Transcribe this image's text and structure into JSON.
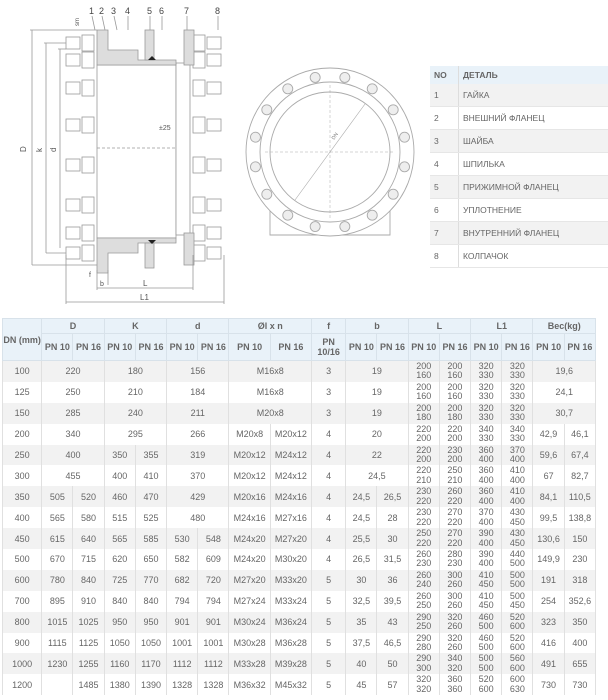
{
  "drawing": {
    "callouts": [
      "1",
      "2",
      "3",
      "4",
      "5",
      "6",
      "7",
      "8"
    ],
    "dims": {
      "D": "D",
      "k": "k",
      "d": "d",
      "L": "L",
      "L1": "L1",
      "b": "b",
      "f": "f",
      "pm": "±25",
      "sm": "sm"
    },
    "front_label": "DN"
  },
  "parts": {
    "headers": [
      "NO",
      "ДЕТАЛЬ"
    ],
    "rows": [
      [
        "1",
        "ГАЙКА"
      ],
      [
        "2",
        "ВНЕШНИЙ ФЛАНЕЦ"
      ],
      [
        "3",
        "ШАЙБА"
      ],
      [
        "4",
        "ШПИЛЬКА"
      ],
      [
        "5",
        "ПРИЖИМНОЙ ФЛАНЕЦ"
      ],
      [
        "6",
        "УПЛОТНЕНИЕ"
      ],
      [
        "7",
        "ВНУТРЕННИЙ ФЛАНЕЦ"
      ],
      [
        "8",
        "КОЛПАЧОК"
      ]
    ]
  },
  "table": {
    "head": {
      "dn": "DN (mm)",
      "D": "D",
      "K": "K",
      "d": "d",
      "bolt": "Øl x n",
      "f": "f",
      "b": "b",
      "L": "L",
      "L1": "L1",
      "w": "Bec(kg)",
      "pn10": "PN 10",
      "pn16": "PN 16",
      "pn1016": "PN 10/16"
    },
    "rows": [
      {
        "dn": "100",
        "D": [
          "220"
        ],
        "K": [
          "180"
        ],
        "d": [
          "156"
        ],
        "bolt": [
          "M16x8"
        ],
        "f": "3",
        "b": [
          "19"
        ],
        "L": [
          [
            "200",
            "160"
          ],
          [
            "200",
            "160"
          ]
        ],
        "L1": [
          [
            "320",
            "330"
          ],
          [
            "320",
            "330"
          ]
        ],
        "w": [
          "19,6"
        ]
      },
      {
        "dn": "125",
        "D": [
          "250"
        ],
        "K": [
          "210"
        ],
        "d": [
          "184"
        ],
        "bolt": [
          "M16x8"
        ],
        "f": "3",
        "b": [
          "19"
        ],
        "L": [
          [
            "200",
            "160"
          ],
          [
            "200",
            "160"
          ]
        ],
        "L1": [
          [
            "320",
            "330"
          ],
          [
            "320",
            "330"
          ]
        ],
        "w": [
          "24,1"
        ]
      },
      {
        "dn": "150",
        "D": [
          "285"
        ],
        "K": [
          "240"
        ],
        "d": [
          "211"
        ],
        "bolt": [
          "M20x8"
        ],
        "f": "3",
        "b": [
          "19"
        ],
        "L": [
          [
            "200",
            "180"
          ],
          [
            "200",
            "180"
          ]
        ],
        "L1": [
          [
            "320",
            "330"
          ],
          [
            "320",
            "330"
          ]
        ],
        "w": [
          "30,7"
        ]
      },
      {
        "dn": "200",
        "D": [
          "340"
        ],
        "K": [
          "295"
        ],
        "d": [
          "266"
        ],
        "bolt": [
          "M20x8",
          "M20x12"
        ],
        "f": "4",
        "b": [
          "20"
        ],
        "L": [
          [
            "220",
            "200"
          ],
          [
            "220",
            "200"
          ]
        ],
        "L1": [
          [
            "340",
            "330"
          ],
          [
            "340",
            "330"
          ]
        ],
        "w": [
          "42,9",
          "46,1"
        ]
      },
      {
        "dn": "250",
        "D": [
          "400"
        ],
        "K": [
          "350",
          "355"
        ],
        "d": [
          "319"
        ],
        "bolt": [
          "M20x12",
          "M24x12"
        ],
        "f": "4",
        "b": [
          "22"
        ],
        "L": [
          [
            "220",
            "200"
          ],
          [
            "230",
            "200"
          ]
        ],
        "L1": [
          [
            "360",
            "400"
          ],
          [
            "370",
            "400"
          ]
        ],
        "w": [
          "59,6",
          "67,4"
        ]
      },
      {
        "dn": "300",
        "D": [
          "455"
        ],
        "K": [
          "400",
          "410"
        ],
        "d": [
          "370"
        ],
        "bolt": [
          "M20x12",
          "M24x12"
        ],
        "f": "4",
        "b": [
          "24,5"
        ],
        "L": [
          [
            "220",
            "210"
          ],
          [
            "250",
            "210"
          ]
        ],
        "L1": [
          [
            "360",
            "400"
          ],
          [
            "410",
            "400"
          ]
        ],
        "w": [
          "67",
          "82,7"
        ]
      },
      {
        "dn": "350",
        "D": [
          "505",
          "520"
        ],
        "K": [
          "460",
          "470"
        ],
        "d": [
          "429"
        ],
        "bolt": [
          "M20x16",
          "M24x16"
        ],
        "f": "4",
        "b": [
          "24,5",
          "26,5"
        ],
        "L": [
          [
            "230",
            "220"
          ],
          [
            "260",
            "220"
          ]
        ],
        "L1": [
          [
            "360",
            "400"
          ],
          [
            "410",
            "400"
          ]
        ],
        "w": [
          "84,1",
          "110,5"
        ]
      },
      {
        "dn": "400",
        "D": [
          "565",
          "580"
        ],
        "K": [
          "515",
          "525"
        ],
        "d": [
          "480"
        ],
        "bolt": [
          "M24x16",
          "M27x16"
        ],
        "f": "4",
        "b": [
          "24,5",
          "28"
        ],
        "L": [
          [
            "230",
            "220"
          ],
          [
            "270",
            "220"
          ]
        ],
        "L1": [
          [
            "370",
            "400"
          ],
          [
            "430",
            "450"
          ]
        ],
        "w": [
          "99,5",
          "138,8"
        ]
      },
      {
        "dn": "450",
        "D": [
          "615",
          "640"
        ],
        "K": [
          "565",
          "585"
        ],
        "d": [
          "530",
          "548"
        ],
        "bolt": [
          "M24x20",
          "M27x20"
        ],
        "f": "4",
        "b": [
          "25,5",
          "30"
        ],
        "L": [
          [
            "250",
            "220"
          ],
          [
            "270",
            "220"
          ]
        ],
        "L1": [
          [
            "390",
            "400"
          ],
          [
            "430",
            "450"
          ]
        ],
        "w": [
          "130,6",
          "150"
        ]
      },
      {
        "dn": "500",
        "D": [
          "670",
          "715"
        ],
        "K": [
          "620",
          "650"
        ],
        "d": [
          "582",
          "609"
        ],
        "bolt": [
          "M24x20",
          "M30x20"
        ],
        "f": "4",
        "b": [
          "26,5",
          "31,5"
        ],
        "L": [
          [
            "260",
            "230"
          ],
          [
            "280",
            "230"
          ]
        ],
        "L1": [
          [
            "390",
            "400"
          ],
          [
            "440",
            "500"
          ]
        ],
        "w": [
          "149,9",
          "230"
        ]
      },
      {
        "dn": "600",
        "D": [
          "780",
          "840"
        ],
        "K": [
          "725",
          "770"
        ],
        "d": [
          "682",
          "720"
        ],
        "bolt": [
          "M27x20",
          "M33x20"
        ],
        "f": "5",
        "b": [
          "30",
          "36"
        ],
        "L": [
          [
            "260",
            "240"
          ],
          [
            "300",
            "260"
          ]
        ],
        "L1": [
          [
            "410",
            "450"
          ],
          [
            "500",
            "500"
          ]
        ],
        "w": [
          "191",
          "318"
        ]
      },
      {
        "dn": "700",
        "D": [
          "895",
          "910"
        ],
        "K": [
          "840",
          "840"
        ],
        "d": [
          "794",
          "794"
        ],
        "bolt": [
          "M27x24",
          "M33x24"
        ],
        "f": "5",
        "b": [
          "32,5",
          "39,5"
        ],
        "L": [
          [
            "260",
            "250"
          ],
          [
            "300",
            "260"
          ]
        ],
        "L1": [
          [
            "410",
            "450"
          ],
          [
            "500",
            "450"
          ]
        ],
        "w": [
          "254",
          "352,6"
        ]
      },
      {
        "dn": "800",
        "D": [
          "1015",
          "1025"
        ],
        "K": [
          "950",
          "950"
        ],
        "d": [
          "901",
          "901"
        ],
        "bolt": [
          "M30x24",
          "M36x24"
        ],
        "f": "5",
        "b": [
          "35",
          "43"
        ],
        "L": [
          [
            "290",
            "250"
          ],
          [
            "320",
            "260"
          ]
        ],
        "L1": [
          [
            "460",
            "500"
          ],
          [
            "520",
            "600"
          ]
        ],
        "w": [
          "323",
          "350"
        ]
      },
      {
        "dn": "900",
        "D": [
          "1115",
          "1125"
        ],
        "K": [
          "1050",
          "1050"
        ],
        "d": [
          "1001",
          "1001"
        ],
        "bolt": [
          "M30x28",
          "M36x28"
        ],
        "f": "5",
        "b": [
          "37,5",
          "46,5"
        ],
        "L": [
          [
            "290",
            "280"
          ],
          [
            "320",
            "260"
          ]
        ],
        "L1": [
          [
            "460",
            "500"
          ],
          [
            "520",
            "600"
          ]
        ],
        "w": [
          "416",
          "400"
        ]
      },
      {
        "dn": "1000",
        "D": [
          "1230",
          "1255"
        ],
        "K": [
          "1160",
          "1170"
        ],
        "d": [
          "1112",
          "1112"
        ],
        "bolt": [
          "M33x28",
          "M39x28"
        ],
        "f": "5",
        "b": [
          "40",
          "50"
        ],
        "L": [
          [
            "290",
            "300"
          ],
          [
            "340",
            "320"
          ]
        ],
        "L1": [
          [
            "500",
            "500"
          ],
          [
            "560",
            "600"
          ]
        ],
        "w": [
          "491",
          "655"
        ]
      },
      {
        "dn": "1200",
        "D": [
          "",
          "1485"
        ],
        "K": [
          "1380",
          "1390"
        ],
        "d": [
          "1328",
          "1328"
        ],
        "bolt": [
          "M36x32",
          "M45x32"
        ],
        "f": "5",
        "b": [
          "45",
          "57"
        ],
        "L": [
          [
            "320",
            "320"
          ],
          [
            "360",
            "360"
          ]
        ],
        "L1": [
          [
            "520",
            "600"
          ],
          [
            "600",
            "630"
          ]
        ],
        "w": [
          "730",
          "730"
        ]
      }
    ]
  }
}
